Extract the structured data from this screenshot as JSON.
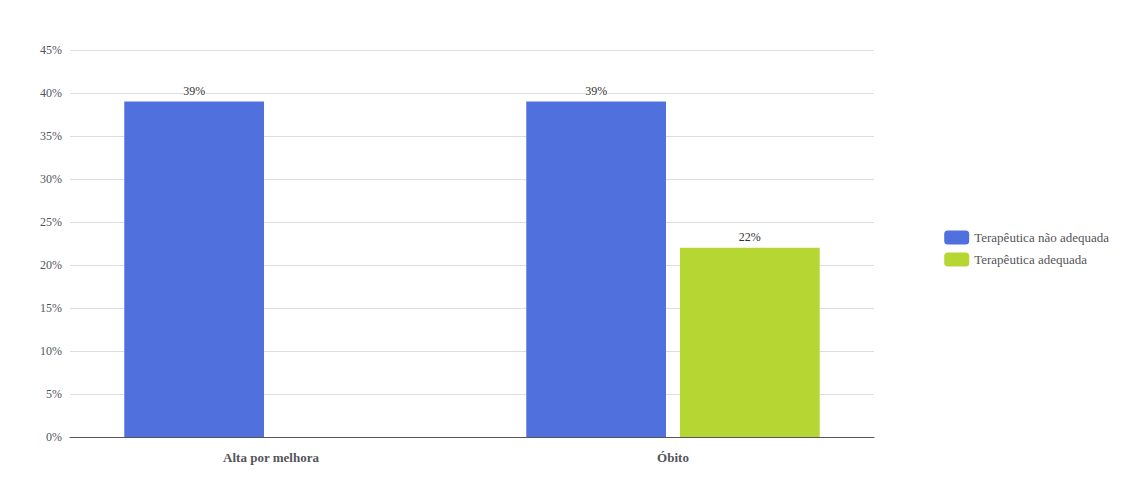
{
  "chart_data": {
    "type": "bar",
    "categories": [
      "Alta por melhora",
      "Óbito"
    ],
    "series": [
      {
        "name": "Terapêutica não adequada",
        "values": [
          0.39,
          0.39
        ],
        "value_labels": [
          "39%",
          "39%"
        ]
      },
      {
        "name": "Terapêutica adequada",
        "values": [
          null,
          0.22
        ],
        "value_labels": [
          null,
          "22%"
        ]
      }
    ],
    "ylim": [
      0,
      0.45
    ],
    "yticks": [
      {
        "value": 0.0,
        "label": "0%"
      },
      {
        "value": 0.05,
        "label": "5%"
      },
      {
        "value": 0.1,
        "label": "10%"
      },
      {
        "value": 0.15,
        "label": "15%"
      },
      {
        "value": 0.2,
        "label": "20%"
      },
      {
        "value": 0.25,
        "label": "25%"
      },
      {
        "value": 0.3,
        "label": "30%"
      },
      {
        "value": 0.35,
        "label": "35%"
      },
      {
        "value": 0.4,
        "label": "40%"
      },
      {
        "value": 0.45,
        "label": "45%"
      }
    ],
    "grid": true,
    "legend": "right",
    "data_labels": true
  }
}
